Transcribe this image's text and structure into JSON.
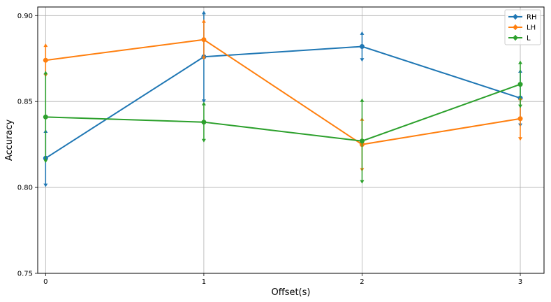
{
  "chart_data": {
    "type": "line",
    "title": "",
    "xlabel": "Offset(s)",
    "ylabel": "Accuracy",
    "x": [
      0,
      1,
      2,
      3
    ],
    "x_ticks": [
      "0",
      "1",
      "2",
      "3"
    ],
    "xlim": [
      -0.05,
      3.15
    ],
    "ylim": [
      0.75,
      0.905
    ],
    "y_ticks": [
      "0.75",
      "0.80",
      "0.85",
      "0.90"
    ],
    "grid": true,
    "legend_position": "top-right",
    "error_bars": true,
    "series": [
      {
        "name": "RH",
        "color": "#1f77b4",
        "values": [
          0.817,
          0.876,
          0.882,
          0.852
        ],
        "errors": [
          0.016,
          0.026,
          0.008,
          0.016
        ]
      },
      {
        "name": "LH",
        "color": "#ff7f0e",
        "values": [
          0.874,
          0.886,
          0.825,
          0.84
        ],
        "errors": [
          0.009,
          0.011,
          0.015,
          0.012
        ]
      },
      {
        "name": "L",
        "color": "#2ca02c",
        "values": [
          0.841,
          0.838,
          0.827,
          0.86
        ],
        "errors": [
          0.026,
          0.011,
          0.024,
          0.013
        ]
      }
    ]
  }
}
